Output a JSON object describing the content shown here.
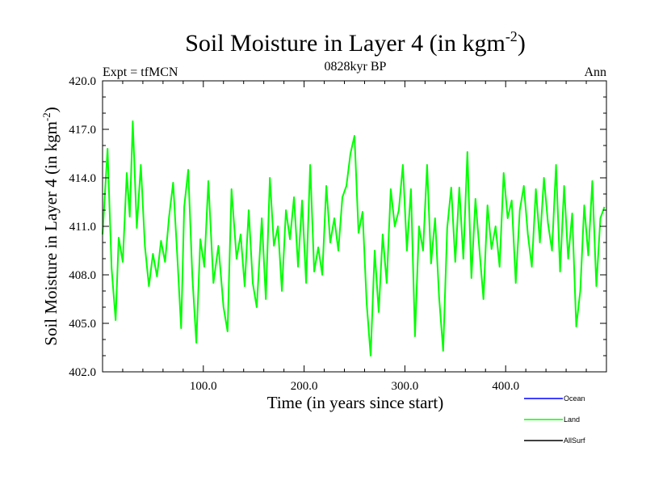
{
  "chart_data": {
    "type": "line",
    "title_main": "Soil Moisture in Layer 4 (in kgm",
    "title_sup": "-2",
    "title_close": ")",
    "subtitle": "0828kyr BP",
    "left_label": "Expt = tfMCN",
    "right_label": "Ann",
    "xlabel": "Time (in years since start)",
    "ylabel_main": "Soil Moisture in Layer 4 (in kgm",
    "ylabel_sup": "-2",
    "ylabel_close": ")",
    "xlim": [
      0,
      500
    ],
    "ylim": [
      402,
      420
    ],
    "x_ticks": [
      100,
      200,
      300,
      400
    ],
    "x_tick_labels": [
      "100.0",
      "200.0",
      "300.0",
      "400.0"
    ],
    "y_ticks": [
      402,
      405,
      408,
      411,
      414,
      417,
      420
    ],
    "y_tick_labels": [
      "402.0",
      "405.0",
      "408.0",
      "411.0",
      "414.0",
      "417.0",
      "420.0"
    ],
    "legend": [
      {
        "name": "Ocean",
        "color": "#0000ff"
      },
      {
        "name": "Land",
        "color": "#00ff00"
      },
      {
        "name": "AllSurf",
        "color": "#000000"
      }
    ],
    "series": [
      {
        "name": "Land",
        "color": "#00ff00",
        "x": [
          0,
          5,
          9,
          13,
          16,
          20,
          24,
          27,
          30,
          34,
          38,
          42,
          46,
          50,
          54,
          58,
          62,
          66,
          70,
          74,
          78,
          81,
          85,
          89,
          93,
          97,
          101,
          105,
          110,
          115,
          120,
          124,
          128,
          133,
          137,
          141,
          145,
          149,
          153,
          158,
          162,
          166,
          170,
          174,
          178,
          182,
          186,
          190,
          194,
          198,
          202,
          206,
          210,
          214,
          218,
          222,
          226,
          230,
          234,
          238,
          242,
          246,
          250,
          254,
          258,
          262,
          266,
          270,
          274,
          278,
          282,
          286,
          290,
          294,
          298,
          302,
          306,
          310,
          314,
          318,
          322,
          326,
          330,
          334,
          338,
          342,
          346,
          350,
          354,
          358,
          362,
          366,
          370,
          374,
          378,
          382,
          386,
          390,
          394,
          398,
          402,
          406,
          410,
          414,
          418,
          422,
          426,
          430,
          434,
          438,
          442,
          446,
          450,
          454,
          458,
          462,
          466,
          470,
          474,
          478,
          482,
          486,
          490,
          494,
          498
        ],
        "values": [
          410.5,
          415.8,
          408.4,
          405.2,
          410.3,
          408.8,
          414.3,
          411.6,
          417.5,
          410.9,
          414.8,
          409.8,
          407.3,
          409.3,
          407.9,
          410.1,
          408.8,
          411.6,
          413.7,
          409.3,
          404.7,
          412.2,
          414.5,
          408.0,
          403.8,
          410.2,
          408.5,
          413.8,
          407.5,
          409.8,
          406.0,
          404.5,
          413.3,
          409.0,
          410.5,
          407.3,
          412.0,
          407.5,
          406.0,
          411.5,
          406.5,
          414.0,
          409.8,
          411.0,
          407.0,
          412.0,
          410.2,
          412.8,
          408.5,
          412.6,
          407.5,
          414.8,
          408.2,
          409.7,
          408.0,
          413.5,
          410.0,
          411.5,
          409.5,
          412.8,
          413.5,
          415.5,
          416.6,
          410.6,
          411.9,
          406.3,
          403.0,
          409.5,
          405.7,
          410.5,
          407.5,
          413.3,
          411.0,
          412.0,
          414.8,
          409.5,
          413.3,
          404.2,
          411.0,
          409.5,
          414.8,
          408.7,
          411.5,
          406.6,
          403.3,
          410.9,
          413.4,
          408.8,
          413.4,
          409.0,
          415.6,
          407.8,
          412.7,
          409.5,
          406.5,
          412.3,
          409.6,
          411.0,
          408.5,
          414.3,
          411.5,
          412.6,
          407.5,
          412.0,
          413.5,
          410.5,
          408.5,
          413.3,
          410.0,
          414.0,
          411.2,
          409.5,
          414.8,
          408.2,
          413.5,
          409.0,
          411.8,
          404.8,
          407.0,
          412.3,
          409.2,
          413.8,
          407.3,
          411.5,
          412.2
        ]
      }
    ]
  }
}
